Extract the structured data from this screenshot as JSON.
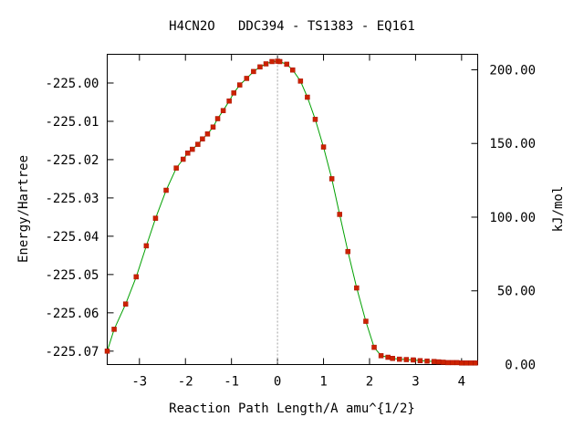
{
  "chart_data": {
    "type": "scatter",
    "title": "H4CN2O   DDC394 - TS1383 - EQ161",
    "xlabel": "Reaction Path Length/A amu^{1/2}",
    "ylabel": "Energy/Hartree",
    "y2label": "kJ/mol",
    "xlim": [
      -3.7,
      4.35
    ],
    "ylim": [
      -225.0735,
      -224.9925
    ],
    "y2lim": [
      0,
      210.5
    ],
    "x_ticks": [
      -3,
      -2,
      -1,
      0,
      1,
      2,
      3,
      4
    ],
    "x_tick_labels": [
      "-3",
      "-2",
      "-1",
      "0",
      "1",
      "2",
      "3",
      "4"
    ],
    "y_ticks": [
      -225.0,
      -225.01,
      -225.02,
      -225.03,
      -225.04,
      -225.05,
      -225.06,
      -225.07
    ],
    "y_tick_labels": [
      "-225.00",
      "-225.01",
      "-225.02",
      "-225.03",
      "-225.04",
      "-225.05",
      "-225.06",
      "-225.07"
    ],
    "y2_ticks": [
      0,
      50,
      100,
      150,
      200
    ],
    "y2_tick_labels": [
      "0.00",
      "50.00",
      "100.00",
      "150.00",
      "200.00"
    ],
    "ts_x": 0,
    "grid": false,
    "series": [
      {
        "color": "#cc2200",
        "line_color": "#00a000",
        "points": [
          [
            -3.7,
            -225.07
          ],
          [
            -3.55,
            -225.0643
          ],
          [
            -3.3,
            -225.0577
          ],
          [
            -3.07,
            -225.0506
          ],
          [
            -2.85,
            -225.0425
          ],
          [
            -2.65,
            -225.0353
          ],
          [
            -2.42,
            -225.028
          ],
          [
            -2.2,
            -225.0222
          ],
          [
            -2.05,
            -225.0199
          ],
          [
            -1.95,
            -225.0183
          ],
          [
            -1.85,
            -225.0173
          ],
          [
            -1.73,
            -225.016
          ],
          [
            -1.63,
            -225.0146
          ],
          [
            -1.52,
            -225.0133
          ],
          [
            -1.4,
            -225.0115
          ],
          [
            -1.3,
            -225.0093
          ],
          [
            -1.18,
            -225.0072
          ],
          [
            -1.05,
            -225.0047
          ],
          [
            -0.95,
            -225.0026
          ],
          [
            -0.82,
            -225.0005
          ],
          [
            -0.67,
            -224.9988
          ],
          [
            -0.52,
            -224.997
          ],
          [
            -0.38,
            -224.9958
          ],
          [
            -0.25,
            -224.995
          ],
          [
            -0.12,
            -224.9944
          ],
          [
            0.0,
            -224.9943
          ],
          [
            0.05,
            -224.9944
          ],
          [
            0.2,
            -224.9951
          ],
          [
            0.33,
            -224.9966
          ],
          [
            0.5,
            -224.9995
          ],
          [
            0.65,
            -225.0037
          ],
          [
            0.82,
            -225.0095
          ],
          [
            1.0,
            -225.0167
          ],
          [
            1.18,
            -225.025
          ],
          [
            1.35,
            -225.0343
          ],
          [
            1.53,
            -225.044
          ],
          [
            1.72,
            -225.0535
          ],
          [
            1.92,
            -225.0622
          ],
          [
            2.1,
            -225.069
          ],
          [
            2.25,
            -225.0712
          ],
          [
            2.4,
            -225.0716
          ],
          [
            2.5,
            -225.0719
          ],
          [
            2.65,
            -225.0721
          ],
          [
            2.8,
            -225.0722
          ],
          [
            2.95,
            -225.0723
          ],
          [
            3.1,
            -225.0725
          ],
          [
            3.25,
            -225.0726
          ],
          [
            3.4,
            -225.0727
          ],
          [
            3.5,
            -225.0728
          ],
          [
            3.6,
            -225.0729
          ],
          [
            3.7,
            -225.073
          ],
          [
            3.8,
            -225.073
          ],
          [
            3.9,
            -225.073
          ],
          [
            4.0,
            -225.0731
          ],
          [
            4.1,
            -225.0731
          ],
          [
            4.2,
            -225.0731
          ],
          [
            4.3,
            -225.0731
          ]
        ]
      }
    ]
  }
}
